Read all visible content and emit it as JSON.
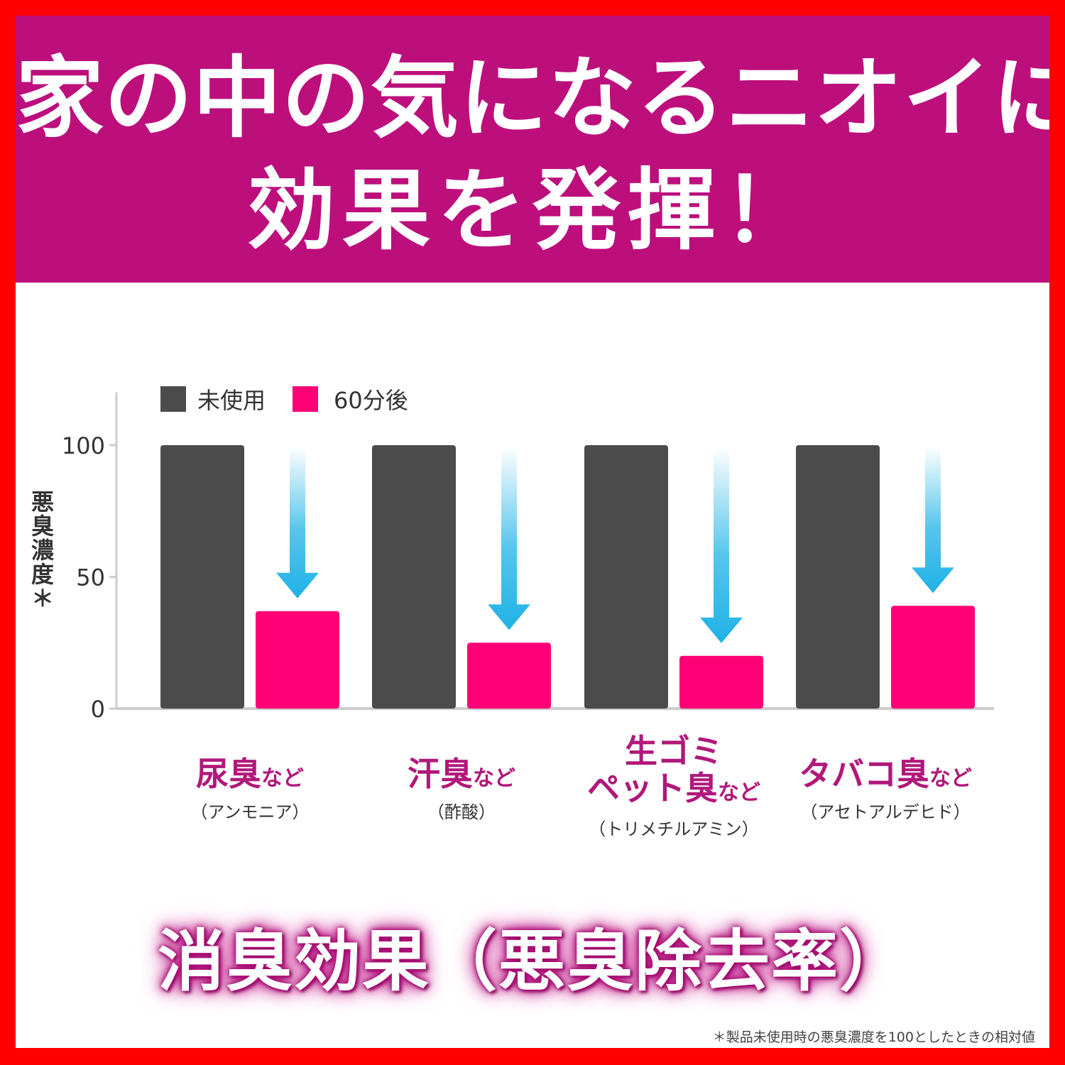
{
  "header": {
    "line1": "家の中の気になるニオイに",
    "line2": "効果を発揮！"
  },
  "colors": {
    "banner": "#bc0f7c",
    "border": "#ff0000",
    "series_before": "#4b4b4b",
    "series_after": "#ff0077",
    "category": "#b1187a",
    "arrow": "#1fb2e6"
  },
  "chart_data": {
    "type": "bar",
    "ylabel": "悪臭濃度＊",
    "ylim": [
      0,
      120
    ],
    "yticks": [
      "100",
      "50",
      "0"
    ],
    "legend_position": "top-left",
    "categories": [
      {
        "main": "尿臭",
        "suffix": "など",
        "main2": "",
        "sub": "（アンモニア）"
      },
      {
        "main": "汗臭",
        "suffix": "など",
        "main2": "",
        "sub": "（酢酸）"
      },
      {
        "main": "生ゴミ",
        "suffix": "など",
        "main2": "ペット臭",
        "sub": "（トリメチルアミン）"
      },
      {
        "main": "タバコ臭",
        "suffix": "など",
        "main2": "",
        "sub": "（アセトアルデヒド）"
      }
    ],
    "series": [
      {
        "name": "未使用",
        "values": [
          100,
          100,
          100,
          100
        ]
      },
      {
        "name": "60分後",
        "values": [
          37,
          25,
          20,
          39
        ]
      }
    ]
  },
  "caption": "消臭効果（悪臭除去率）",
  "footnote": "＊製品未使用時の悪臭濃度を100としたときの相対値"
}
